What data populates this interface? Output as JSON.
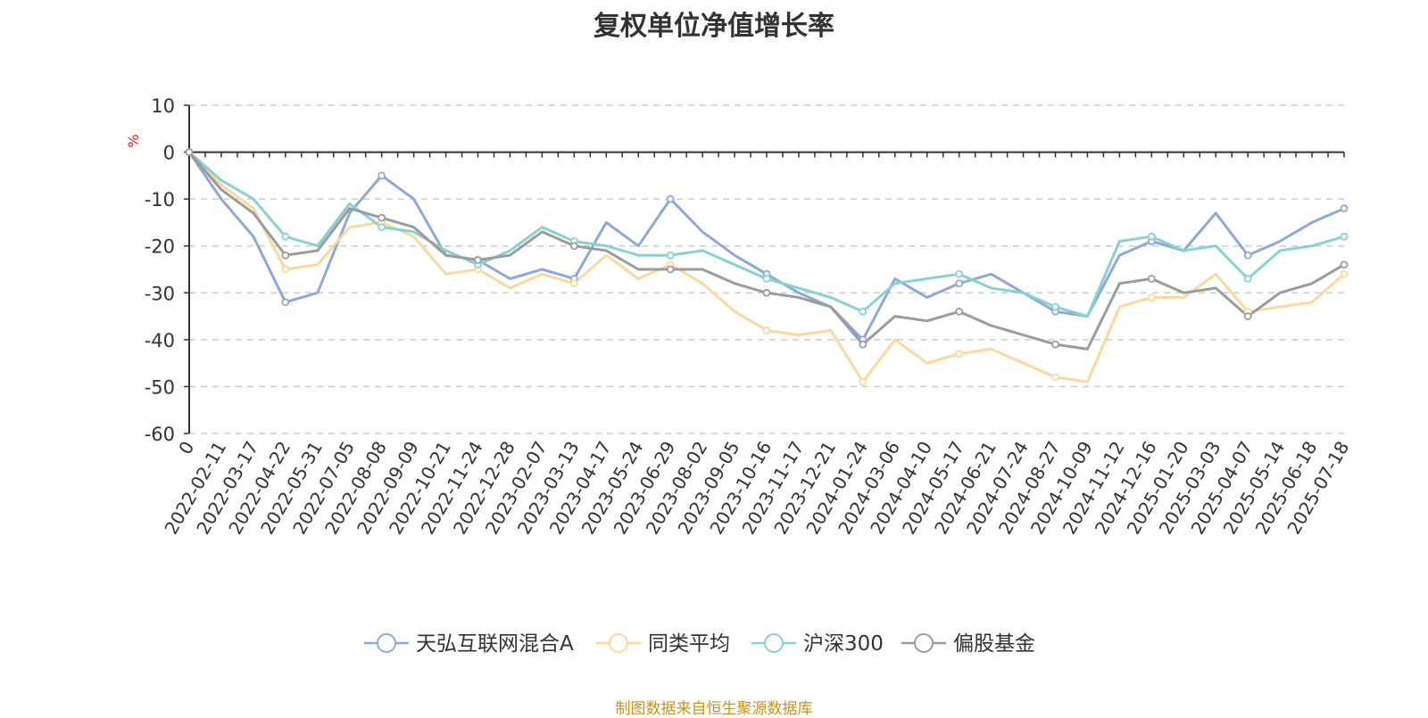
{
  "chart_data": {
    "type": "line",
    "title": "复权单位净值增长率",
    "ylabel": "%",
    "ylim": [
      -60,
      10
    ],
    "yticks": [
      10,
      0,
      -10,
      -20,
      -30,
      -40,
      -50,
      -60
    ],
    "grid": true,
    "legend_position": "bottom",
    "x_labels": [
      "0",
      "2022-02-11",
      "2022-03-17",
      "2022-04-22",
      "2022-05-31",
      "2022-07-05",
      "2022-08-08",
      "2022-09-09",
      "2022-10-21",
      "2022-11-24",
      "2022-12-28",
      "2023-02-07",
      "2023-03-13",
      "2023-04-17",
      "2023-05-24",
      "2023-06-29",
      "2023-08-02",
      "2023-09-05",
      "2023-10-16",
      "2023-11-17",
      "2023-12-21",
      "2024-01-24",
      "2024-03-06",
      "2024-04-10",
      "2024-05-17",
      "2024-06-21",
      "2024-07-24",
      "2024-08-27",
      "2024-10-09",
      "2024-11-12",
      "2024-12-16",
      "2025-01-20",
      "2025-03-03",
      "2025-04-07",
      "2025-05-14",
      "2025-06-18",
      "2025-07-18"
    ],
    "series": [
      {
        "name": "天弘互联网混合A",
        "color": "#8ea9d8",
        "values": [
          0,
          -10,
          -18,
          -32,
          -30,
          -13,
          -5,
          -10,
          -22,
          -23,
          -27,
          -25,
          -27,
          -15,
          -20,
          -10,
          -17,
          -22,
          -26,
          -30,
          -33,
          -40,
          -27,
          -31,
          -28,
          -26,
          -30,
          -34,
          -35,
          -22,
          -19,
          -21,
          -13,
          -22,
          -19,
          -15,
          -12
        ]
      },
      {
        "name": "同类平均",
        "color": "#fbd89d",
        "values": [
          0,
          -7,
          -12,
          -25,
          -24,
          -16,
          -15,
          -18,
          -26,
          -25,
          -29,
          -26,
          -28,
          -22,
          -27,
          -24,
          -28,
          -34,
          -38,
          -39,
          -38,
          -49,
          -40,
          -45,
          -43,
          -42,
          -45,
          -48,
          -49,
          -33,
          -31,
          -31,
          -26,
          -34,
          -33,
          -32,
          -26
        ]
      },
      {
        "name": "沪深300",
        "color": "#88d2d2",
        "values": [
          0,
          -6,
          -10,
          -18,
          -20,
          -11,
          -16,
          -17,
          -21,
          -24,
          -21,
          -16,
          -19,
          -20,
          -22,
          -22,
          -21,
          -24,
          -27,
          -29,
          -31,
          -34,
          -28,
          -27,
          -26,
          -29,
          -30,
          -33,
          -35,
          -19,
          -18,
          -21,
          -20,
          -27,
          -21,
          -20,
          -18
        ]
      },
      {
        "name": "偏股基金",
        "color": "#9c9c9c",
        "values": [
          0,
          -8,
          -13,
          -22,
          -21,
          -12,
          -14,
          -16,
          -22,
          -23,
          -22,
          -17,
          -20,
          -21,
          -25,
          -25,
          -25,
          -28,
          -30,
          -31,
          -33,
          -41,
          -35,
          -36,
          -34,
          -37,
          -39,
          -41,
          -42,
          -28,
          -27,
          -30,
          -29,
          -35,
          -30,
          -28,
          -24
        ]
      }
    ]
  },
  "footer": "制图数据来自恒生聚源数据库"
}
